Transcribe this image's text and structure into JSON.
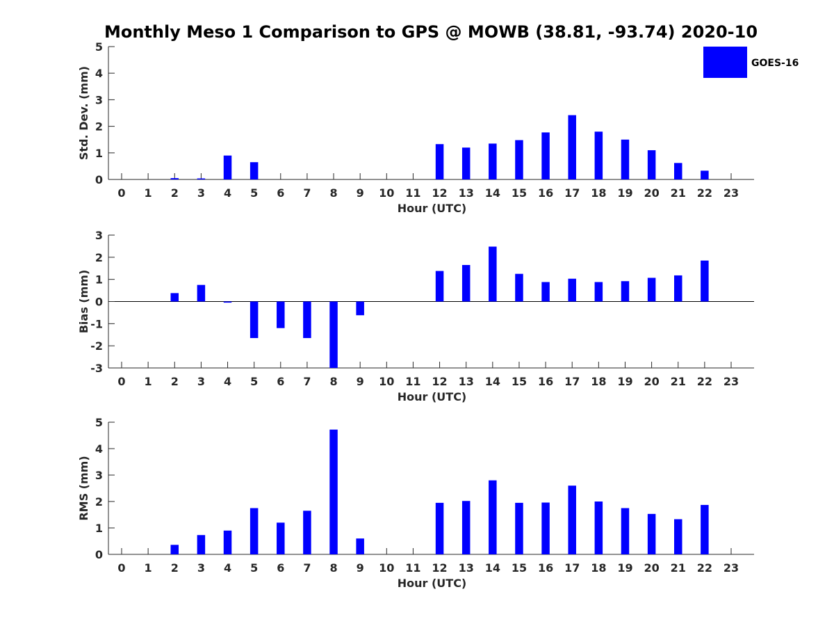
{
  "chart_data": [
    {
      "type": "bar",
      "title": "Monthly Meso 1 Comparison to GPS @ MOWB (38.81, -93.74) 2020-10",
      "xlabel": "Hour (UTC)",
      "ylabel": "Std. Dev. (mm)",
      "ylim": [
        0,
        5
      ],
      "yticks": [
        0,
        1,
        2,
        3,
        4,
        5
      ],
      "categories": [
        "0",
        "1",
        "2",
        "3",
        "4",
        "5",
        "6",
        "7",
        "8",
        "9",
        "10",
        "11",
        "12",
        "13",
        "14",
        "15",
        "16",
        "17",
        "18",
        "19",
        "20",
        "21",
        "22",
        "23"
      ],
      "series": [
        {
          "name": "GOES-16",
          "color": "#0000ff",
          "values": [
            0,
            0,
            0.05,
            0.02,
            0.9,
            0.65,
            0,
            0,
            0,
            0,
            0,
            0,
            1.33,
            1.2,
            1.35,
            1.48,
            1.77,
            2.42,
            1.8,
            1.5,
            1.1,
            0.62,
            0.33,
            0
          ]
        }
      ]
    },
    {
      "type": "bar",
      "xlabel": "Hour (UTC)",
      "ylabel": "Bias (mm)",
      "ylim": [
        -3,
        3
      ],
      "yticks": [
        -3,
        -2,
        -1,
        0,
        1,
        2,
        3
      ],
      "categories": [
        "0",
        "1",
        "2",
        "3",
        "4",
        "5",
        "6",
        "7",
        "8",
        "9",
        "10",
        "11",
        "12",
        "13",
        "14",
        "15",
        "16",
        "17",
        "18",
        "19",
        "20",
        "21",
        "22",
        "23"
      ],
      "series": [
        {
          "name": "GOES-16",
          "color": "#0000ff",
          "values": [
            0,
            0,
            0.38,
            0.75,
            -0.05,
            -1.65,
            -1.2,
            -1.65,
            -3,
            -0.62,
            0,
            0,
            1.38,
            1.65,
            2.48,
            1.25,
            0.88,
            1.03,
            0.88,
            0.92,
            1.07,
            1.18,
            1.85,
            0
          ]
        }
      ]
    },
    {
      "type": "bar",
      "xlabel": "Hour (UTC)",
      "ylabel": "RMS (mm)",
      "ylim": [
        0,
        5
      ],
      "yticks": [
        0,
        1,
        2,
        3,
        4,
        5
      ],
      "categories": [
        "0",
        "1",
        "2",
        "3",
        "4",
        "5",
        "6",
        "7",
        "8",
        "9",
        "10",
        "11",
        "12",
        "13",
        "14",
        "15",
        "16",
        "17",
        "18",
        "19",
        "20",
        "21",
        "22",
        "23"
      ],
      "series": [
        {
          "name": "GOES-16",
          "color": "#0000ff",
          "values": [
            0,
            0,
            0.36,
            0.73,
            0.9,
            1.75,
            1.2,
            1.65,
            4.72,
            0.6,
            0,
            0,
            1.95,
            2.02,
            2.8,
            1.95,
            1.96,
            2.6,
            2.0,
            1.75,
            1.53,
            1.33,
            1.87,
            0
          ]
        }
      ]
    }
  ],
  "legend": {
    "label": "GOES-16",
    "color": "#0000ff",
    "placement": "top-right"
  }
}
